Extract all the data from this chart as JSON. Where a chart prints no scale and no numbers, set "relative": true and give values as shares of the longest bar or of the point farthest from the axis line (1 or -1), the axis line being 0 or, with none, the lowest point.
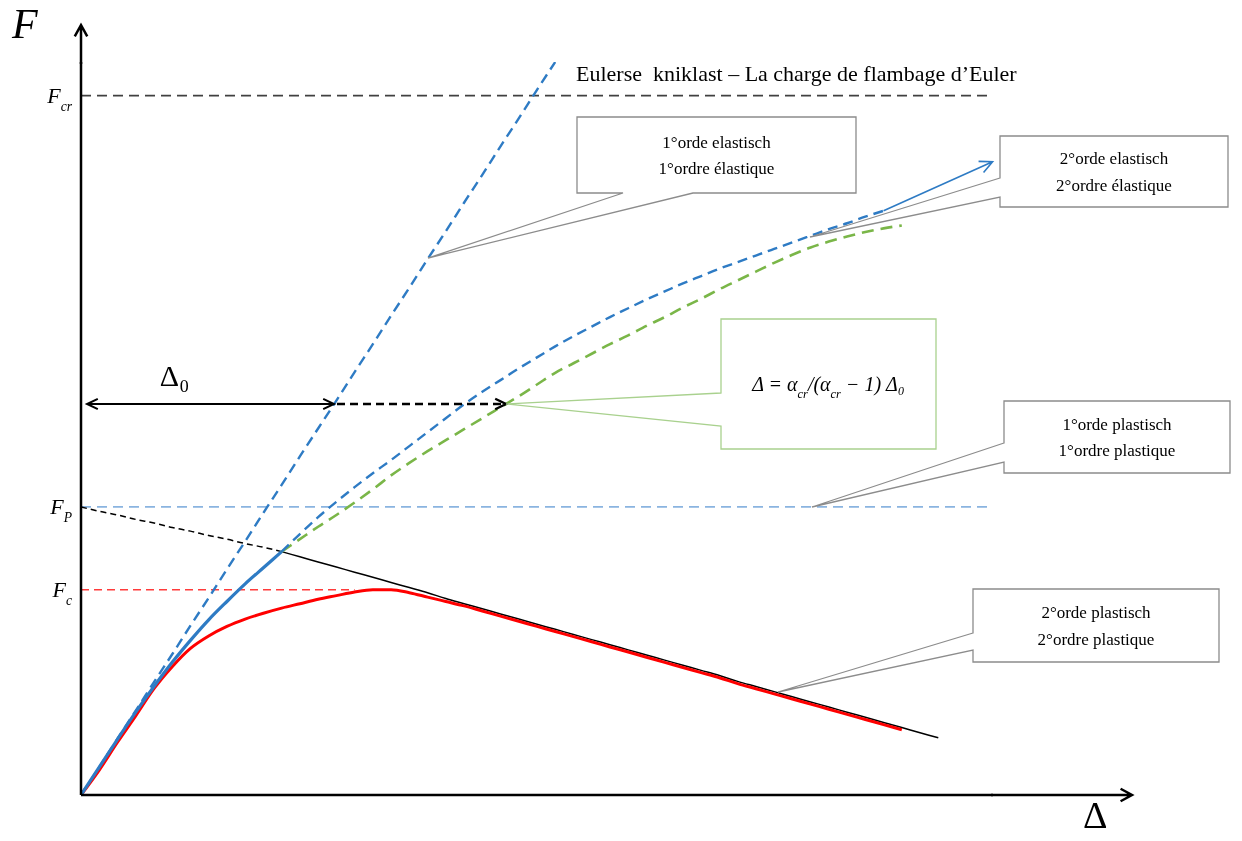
{
  "chart_data": {
    "type": "line",
    "relative": true,
    "xlabel": "Δ",
    "ylabel": "F",
    "categories": [
      null,
      null,
      null,
      null,
      null,
      null,
      null,
      null,
      null,
      null,
      null,
      null,
      null,
      null,
      null,
      null,
      null,
      null,
      null,
      null,
      null,
      null,
      null,
      null,
      null,
      null,
      null,
      null,
      null,
      null,
      null,
      null,
      null,
      null,
      null,
      null,
      null,
      null,
      null,
      null,
      null,
      null,
      null,
      null,
      null,
      null,
      null,
      null,
      null,
      null,
      null
    ],
    "series": [
      {
        "color": "#ff3b3b",
        "line_style": "dashed",
        "values": [
          0.28,
          0.28,
          0.28,
          0.28,
          0.28,
          0.28,
          0.28,
          0.28,
          0.28,
          0.28,
          0.28,
          0.28,
          0.28,
          0.28,
          0.28,
          0.28,
          null,
          null,
          null,
          null,
          null,
          null,
          null,
          null,
          null,
          null,
          null,
          null,
          null,
          null,
          null,
          null,
          null,
          null,
          null,
          null,
          null,
          null,
          null,
          null,
          null,
          null,
          null,
          null,
          null,
          null,
          null,
          null,
          null,
          null,
          null
        ]
      },
      {
        "color": "#000000",
        "line_style": "dashed",
        "values": [
          0.393,
          0.387,
          0.382,
          0.376,
          0.371,
          0.365,
          0.36,
          0.354,
          0.349,
          0.343,
          0.338,
          0.332,
          null,
          null,
          null,
          null,
          null,
          null,
          null,
          null,
          null,
          null,
          null,
          null,
          null,
          null,
          null,
          null,
          null,
          null,
          null,
          null,
          null,
          null,
          null,
          null,
          null,
          null,
          null,
          null,
          null,
          null,
          null,
          null,
          null,
          null,
          null,
          null,
          null,
          null,
          null
        ]
      },
      {
        "color": "#000000",
        "line_style": "solid",
        "values": [
          null,
          null,
          null,
          null,
          null,
          null,
          null,
          null,
          null,
          null,
          null,
          0.332,
          0.325,
          0.318,
          0.311,
          0.304,
          0.297,
          0.29,
          0.283,
          0.276,
          0.268,
          0.261,
          0.254,
          0.247,
          0.24,
          0.233,
          0.226,
          0.219,
          0.212,
          0.205,
          0.198,
          0.191,
          0.184,
          0.177,
          0.17,
          0.163,
          0.155,
          0.148,
          0.141,
          0.134,
          0.127,
          0.12,
          0.113,
          0.106,
          0.099,
          0.092,
          0.085,
          0.078,
          null,
          null,
          null
        ]
      },
      {
        "color": "#7ab648",
        "line_style": "dashed",
        "values": [
          null,
          null,
          null,
          null,
          null,
          null,
          null,
          null,
          null,
          null,
          null,
          0.332,
          0.349,
          0.366,
          0.382,
          0.399,
          0.417,
          0.436,
          0.453,
          0.469,
          0.484,
          0.499,
          0.514,
          0.529,
          0.544,
          0.56,
          0.576,
          0.589,
          0.602,
          0.615,
          0.627,
          0.64,
          0.652,
          0.665,
          0.677,
          0.69,
          0.702,
          0.714,
          0.726,
          0.737,
          0.747,
          0.755,
          0.762,
          0.768,
          0.773,
          0.777,
          null,
          null,
          null,
          null,
          null
        ]
      },
      {
        "color": "#2e7bc4",
        "line_style": "dashed",
        "values": [
          null,
          null,
          null,
          null,
          null,
          null,
          null,
          null,
          null,
          null,
          null,
          0.332,
          0.356,
          0.379,
          0.4,
          0.42,
          0.439,
          0.457,
          0.476,
          0.495,
          0.514,
          0.533,
          0.55,
          0.566,
          0.582,
          0.597,
          0.612,
          0.626,
          0.639,
          0.652,
          0.664,
          0.676,
          0.687,
          0.698,
          0.708,
          0.718,
          0.727,
          0.736,
          0.745,
          0.754,
          0.763,
          0.772,
          0.78,
          0.789,
          0.797,
          null,
          null,
          null,
          null,
          null,
          null
        ]
      },
      {
        "color": "#2e7bc4",
        "line_style": "dashed",
        "values": [
          0,
          0.038,
          0.077,
          0.115,
          0.154,
          0.192,
          0.231,
          0.269,
          0.308,
          0.346,
          0.385,
          0.423,
          0.462,
          0.5,
          0.538,
          0.577,
          0.615,
          0.654,
          0.692,
          0.731,
          0.769,
          0.808,
          0.846,
          0.885,
          0.923,
          0.962,
          1,
          null,
          null,
          null,
          null,
          null,
          null,
          null,
          null,
          null,
          null,
          null,
          null,
          null,
          null,
          null,
          null,
          null,
          null,
          null,
          null,
          null,
          null,
          null,
          null
        ]
      },
      {
        "color": "#ff0000",
        "line_style": "solid",
        "values": [
          0,
          0.034,
          0.072,
          0.108,
          0.145,
          0.175,
          0.2,
          0.217,
          0.23,
          0.24,
          0.248,
          0.255,
          0.261,
          0.267,
          0.272,
          0.277,
          0.28,
          0.28,
          0.276,
          0.27,
          0.264,
          0.258,
          0.251,
          0.244,
          0.237,
          0.23,
          0.223,
          0.216,
          0.209,
          0.202,
          0.195,
          0.188,
          0.181,
          0.174,
          0.167,
          0.16,
          0.152,
          0.145,
          0.138,
          0.131,
          0.124,
          0.117,
          0.11,
          0.103,
          0.096,
          0.089,
          null,
          null,
          null,
          null,
          null
        ]
      },
      {
        "color": "#2e7bc4",
        "line_style": "solid",
        "values": [
          0,
          0.038,
          0.076,
          0.113,
          0.148,
          0.181,
          0.211,
          0.239,
          0.264,
          0.288,
          0.31,
          0.332,
          null,
          null,
          null,
          null,
          null,
          null,
          null,
          null,
          null,
          null,
          null,
          null,
          null,
          null,
          null,
          null,
          null,
          null,
          null,
          null,
          null,
          null,
          null,
          null,
          null,
          null,
          null,
          null,
          null,
          null,
          null,
          null,
          null,
          null,
          null,
          null,
          null,
          null,
          null
        ]
      }
    ],
    "ref_lines": [
      {
        "axis": "y",
        "value": 0.954,
        "label": "F$_{cr}$",
        "color": "#404040",
        "line_style": "dashed"
      },
      {
        "axis": "y",
        "value": 0.393,
        "label": "F$_{P}$",
        "color": "#8ab4e0",
        "line_style": "dashed"
      }
    ],
    "annotations": [
      {
        "text": "Eulerse  kniklast – La charge de flambage d’Euler",
        "y": 0.954
      },
      "1°orde elastisch\n1°ordre élastique",
      "2°orde elastisch\n2°ordre élastique",
      "Δ₀",
      "Δ = α$_{cr}$/(α$_{cr}$ − 1) Δ₀",
      "1°orde plastisch\n1°ordre plastique",
      "2°orde plastisch\n2°ordre plastique",
      "F$_{c}$"
    ]
  }
}
